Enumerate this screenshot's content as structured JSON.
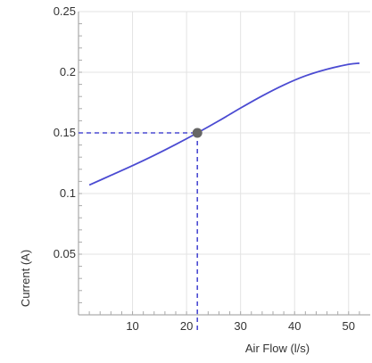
{
  "chart_data": {
    "type": "line",
    "title": "",
    "xlabel": "Air Flow (l/s)",
    "ylabel": "Current (A)",
    "xlim": [
      0,
      54
    ],
    "ylim": [
      0,
      0.25
    ],
    "grid": true,
    "x_ticks": [
      10,
      20,
      30,
      40,
      50
    ],
    "x_tick_labels": [
      "10",
      "20",
      "30",
      "40",
      "50"
    ],
    "y_ticks": [
      0.05,
      0.1,
      0.15,
      0.2,
      0.25
    ],
    "y_tick_labels": [
      "0.05",
      "0.1",
      "0.15",
      "0.2",
      "0.25"
    ],
    "series": [
      {
        "color": "#4b4bd2",
        "x": [
          2,
          6,
          10,
          14,
          18,
          22,
          26,
          30,
          34,
          38,
          42,
          46,
          50,
          52
        ],
        "y": [
          0.107,
          0.115,
          0.123,
          0.1315,
          0.1405,
          0.15,
          0.16,
          0.1705,
          0.1805,
          0.1895,
          0.197,
          0.2025,
          0.2065,
          0.2075
        ]
      }
    ],
    "marker": {
      "x": 22,
      "y": 0.15,
      "color": "#666666"
    },
    "reference_color": "#4b4bd2"
  }
}
